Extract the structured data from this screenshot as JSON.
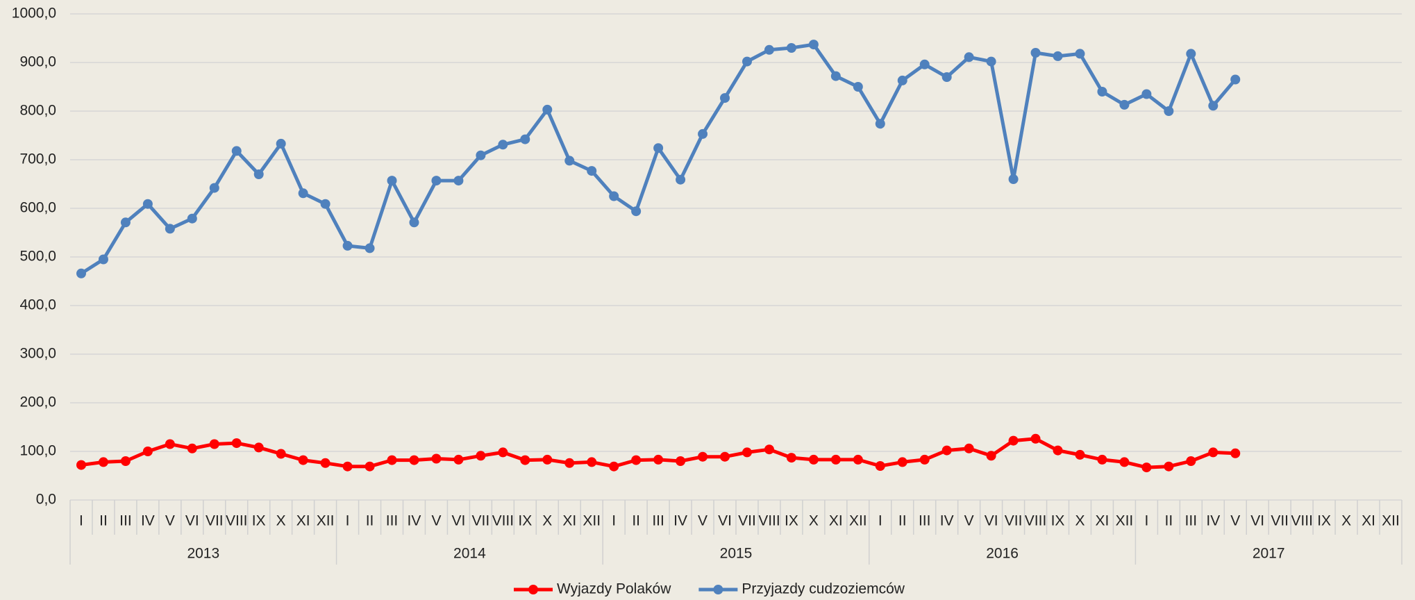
{
  "chart_data": {
    "type": "line",
    "categories": [
      "I",
      "II",
      "III",
      "IV",
      "V",
      "VI",
      "VII",
      "VIII",
      "IX",
      "X",
      "XI",
      "XII",
      "I",
      "II",
      "III",
      "IV",
      "V",
      "VI",
      "VII",
      "VIII",
      "IX",
      "X",
      "XI",
      "XII",
      "I",
      "II",
      "III",
      "IV",
      "V",
      "VI",
      "VII",
      "VIII",
      "IX",
      "X",
      "XI",
      "XII",
      "I",
      "II",
      "III",
      "IV",
      "V",
      "VI",
      "VII",
      "VIII",
      "IX",
      "X",
      "XI",
      "XII",
      "I",
      "II",
      "III",
      "IV",
      "V",
      "VI",
      "VII",
      "VIII",
      "IX",
      "X",
      "XI",
      "XII"
    ],
    "groups": [
      "2013",
      "2014",
      "2015",
      "2016",
      "2017"
    ],
    "series": [
      {
        "name": "Wyjazdy Polaków",
        "color": "#ff0000",
        "values": [
          72,
          78,
          80,
          100,
          115,
          106,
          115,
          117,
          108,
          95,
          82,
          76,
          69,
          69,
          82,
          82,
          85,
          83,
          91,
          98,
          82,
          83,
          76,
          78,
          69,
          82,
          83,
          80,
          89,
          89,
          98,
          104,
          87,
          83,
          83,
          83,
          70,
          78,
          83,
          102,
          106,
          91,
          122,
          126,
          102,
          93,
          83,
          78,
          67,
          69,
          80,
          98,
          96,
          null,
          null,
          null,
          null,
          null,
          null,
          null
        ]
      },
      {
        "name": "Przyjazdy cudzoziemców",
        "color": "#4f81bd",
        "values": [
          466,
          495,
          571,
          609,
          558,
          579,
          642,
          718,
          670,
          733,
          631,
          609,
          523,
          518,
          657,
          571,
          657,
          657,
          709,
          731,
          742,
          803,
          698,
          677,
          625,
          594,
          724,
          659,
          753,
          827,
          902,
          926,
          930,
          937,
          872,
          850,
          774,
          863,
          896,
          870,
          911,
          902,
          660,
          920,
          913,
          918,
          840,
          813,
          835,
          800,
          918,
          811,
          865,
          null,
          null,
          null,
          null,
          null,
          null,
          null
        ]
      }
    ],
    "ylim": [
      0,
      1000
    ],
    "yticks": [
      {
        "value": 0,
        "label": "0,0"
      },
      {
        "value": 100,
        "label": "100,0"
      },
      {
        "value": 200,
        "label": "200,0"
      },
      {
        "value": 300,
        "label": "300,0"
      },
      {
        "value": 400,
        "label": "400,0"
      },
      {
        "value": 500,
        "label": "500,0"
      },
      {
        "value": 600,
        "label": "600,0"
      },
      {
        "value": 700,
        "label": "700,0"
      },
      {
        "value": 800,
        "label": "800,0"
      },
      {
        "value": 900,
        "label": "900,0"
      },
      {
        "value": 1000,
        "label": "1000,0"
      }
    ],
    "grid": true,
    "legend": "bottom"
  }
}
